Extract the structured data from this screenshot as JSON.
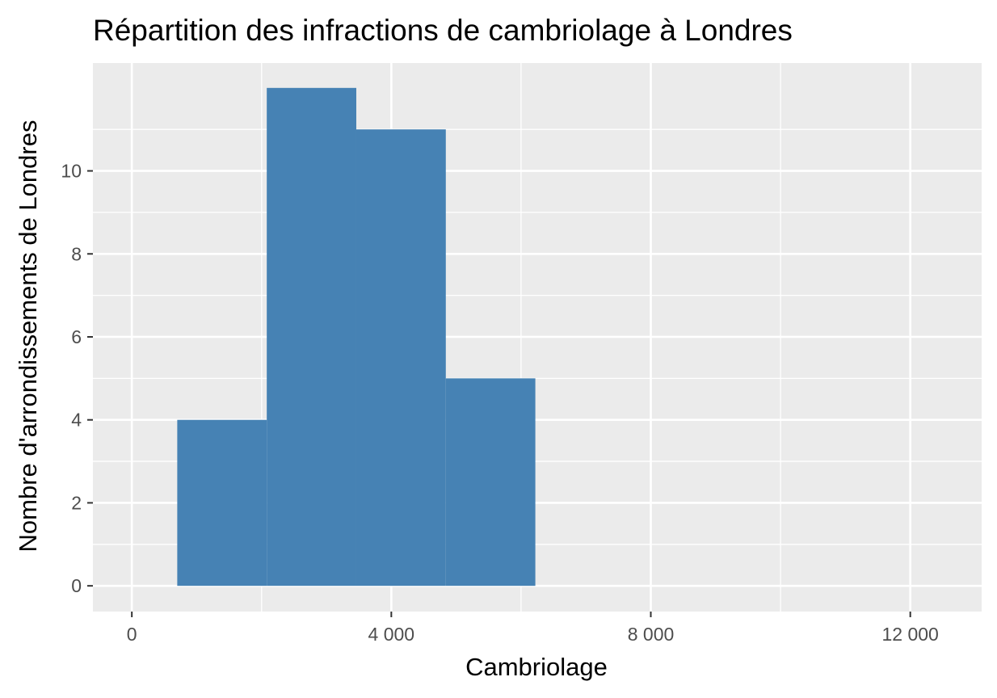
{
  "chart_data": {
    "type": "bar",
    "subtype": "histogram",
    "title": "Répartition des infractions de cambriolage à Londres",
    "xlabel": "Cambriolage",
    "ylabel": "Nombre d'arrondissements de Londres",
    "xlim": [
      -600,
      13100
    ],
    "ylim": [
      -0.62,
      12.6
    ],
    "x_ticks": [
      {
        "value": 0,
        "label": "0"
      },
      {
        "value": 4000,
        "label": "4 000"
      },
      {
        "value": 8000,
        "label": "8 000"
      },
      {
        "value": 12000,
        "label": "12 000"
      }
    ],
    "x_minor_grid": [
      2000,
      6000,
      10000
    ],
    "y_ticks": [
      {
        "value": 0,
        "label": "0"
      },
      {
        "value": 2,
        "label": "2"
      },
      {
        "value": 4,
        "label": "4"
      },
      {
        "value": 6,
        "label": "6"
      },
      {
        "value": 8,
        "label": "8"
      },
      {
        "value": 10,
        "label": "10"
      }
    ],
    "y_minor_grid": [
      1,
      3,
      5,
      7,
      9,
      11
    ],
    "bins": [
      {
        "x0": 700,
        "x1": 2080,
        "count": 4
      },
      {
        "x0": 2080,
        "x1": 3460,
        "count": 12
      },
      {
        "x0": 3460,
        "x1": 4840,
        "count": 11
      },
      {
        "x0": 4840,
        "x1": 6220,
        "count": 5
      }
    ],
    "bar_color": "#4682b4",
    "panel_background": "#ebebeb",
    "grid_color": "#ffffff",
    "grid": true
  }
}
